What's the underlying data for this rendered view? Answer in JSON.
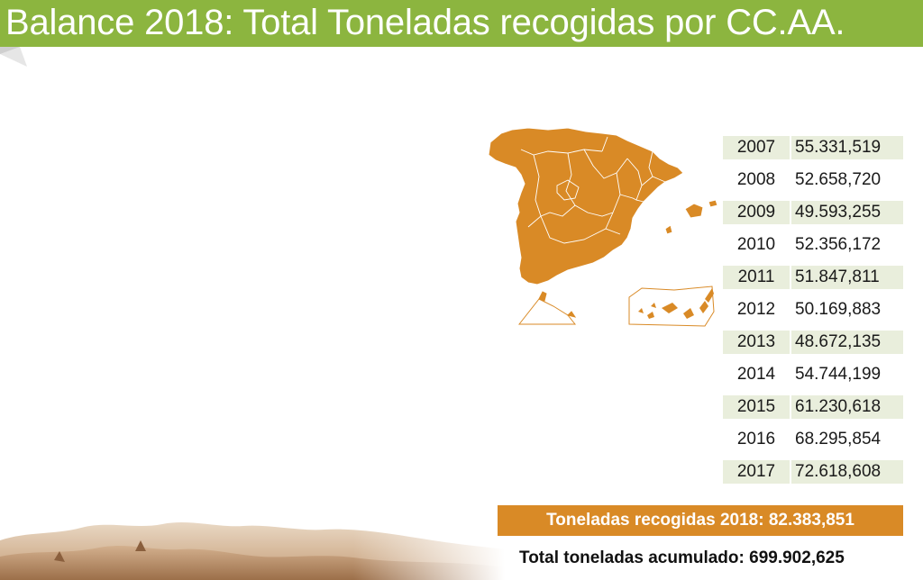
{
  "header": {
    "title": "Balance 2018: Total Toneladas recogidas por CC.AA.",
    "bar_color": "#8cb53f"
  },
  "map": {
    "region": "Spain",
    "fill_color": "#d98a26"
  },
  "yearly_totals": [
    {
      "year": "2007",
      "value": "55.331,519"
    },
    {
      "year": "2008",
      "value": "52.658,720"
    },
    {
      "year": "2009",
      "value": "49.593,255"
    },
    {
      "year": "2010",
      "value": "52.356,172"
    },
    {
      "year": "2011",
      "value": "51.847,811"
    },
    {
      "year": "2012",
      "value": "50.169,883"
    },
    {
      "year": "2013",
      "value": "48.672,135"
    },
    {
      "year": "2014",
      "value": "54.744,199"
    },
    {
      "year": "2015",
      "value": "61.230,618"
    },
    {
      "year": "2016",
      "value": "68.295,854"
    },
    {
      "year": "2017",
      "value": "72.618,608"
    }
  ],
  "summary": {
    "label": "Toneladas recogidas 2018:",
    "value": "82.383,851",
    "color": "#d98a26"
  },
  "cumulative": {
    "label": "Total toneladas acumulado:",
    "value": "699.902,625"
  }
}
